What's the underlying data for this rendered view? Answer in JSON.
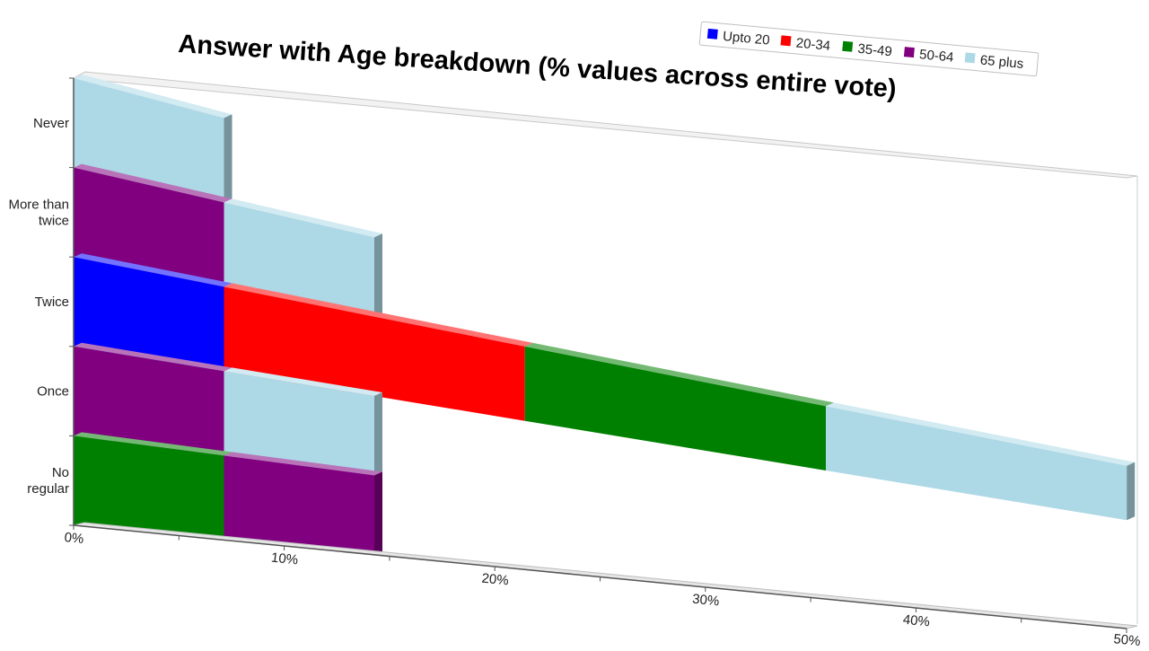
{
  "chart_data": {
    "type": "bar",
    "orientation": "horizontal",
    "stacked": true,
    "three_d": true,
    "title": "Answer with Age breakdown (% values across entire vote)",
    "categories": [
      "Never",
      "More than twice",
      "Twice",
      "Once",
      "No regular"
    ],
    "category_labels": [
      [
        "Never"
      ],
      [
        "More than",
        "twice"
      ],
      [
        "Twice"
      ],
      [
        "Once"
      ],
      [
        "No",
        "regular"
      ]
    ],
    "series": [
      {
        "name": "Upto 20",
        "color": "#0000ff",
        "values": [
          0,
          0,
          7.14,
          0,
          0
        ]
      },
      {
        "name": "20-34",
        "color": "#ff0000",
        "values": [
          0,
          0,
          14.29,
          0,
          0
        ]
      },
      {
        "name": "35-49",
        "color": "#008000",
        "values": [
          0,
          0,
          14.29,
          0,
          7.14
        ]
      },
      {
        "name": "50-64",
        "color": "#800080",
        "values": [
          0,
          7.14,
          0,
          7.14,
          7.14
        ]
      },
      {
        "name": "65 plus",
        "color": "#add8e6",
        "values": [
          7.14,
          7.14,
          14.29,
          7.14,
          0
        ]
      }
    ],
    "x_axis": {
      "range": [
        0,
        50
      ],
      "ticks": [
        0,
        10,
        20,
        30,
        40,
        50
      ],
      "tick_labels": [
        "0%",
        "10%",
        "20%",
        "30%",
        "40%",
        "50%"
      ]
    },
    "grid": false,
    "legend_position": "top-right"
  }
}
